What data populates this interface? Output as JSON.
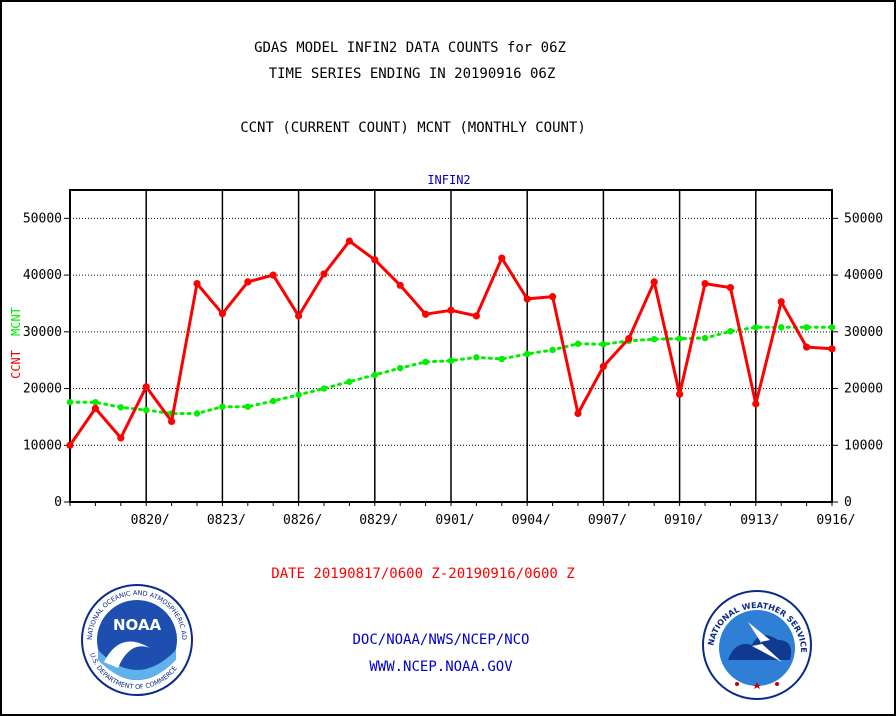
{
  "colors": {
    "ccnt": "#ff0000",
    "mcnt": "#00ee00",
    "frame": "#000000",
    "link_text": "#0000cc"
  },
  "header": {
    "title_line1": "GDAS MODEL INFIN2 DATA COUNTS for 06Z",
    "title_line2": "TIME SERIES ENDING IN 20190916 06Z",
    "legend_line": "CCNT (CURRENT COUNT) MCNT (MONTHLY COUNT)"
  },
  "chart_data": {
    "type": "line",
    "title": "INFIN2",
    "ylabel_series_1": "CCNT",
    "ylabel_series_2": "MCNT",
    "xlabel": "DATE 20190817/0600 Z-20190916/0600 Z",
    "ylim": [
      0,
      55000
    ],
    "y_ticks": [
      0,
      10000,
      20000,
      30000,
      40000,
      50000
    ],
    "x_tick_labels": [
      "0820/",
      "0823/",
      "0826/",
      "0829/",
      "0901/",
      "0904/",
      "0907/",
      "0910/",
      "0913/",
      "0916/"
    ],
    "x_tick_days": [
      3,
      6,
      9,
      12,
      15,
      18,
      21,
      24,
      27,
      30
    ],
    "x_range": [
      0,
      30
    ],
    "grid": true,
    "series": [
      {
        "name": "CCNT",
        "color": "#ff0000",
        "x": [
          0,
          1,
          2,
          3,
          4,
          5,
          6,
          7,
          8,
          9,
          10,
          11,
          12,
          13,
          14,
          15,
          16,
          17,
          18,
          19,
          20,
          21,
          22,
          23,
          24,
          25,
          26,
          27,
          28,
          29,
          30
        ],
        "values": [
          10000,
          16500,
          11300,
          20300,
          14200,
          38500,
          33200,
          38800,
          40000,
          32800,
          40200,
          46000,
          42700,
          38200,
          33100,
          33800,
          32800,
          43000,
          35800,
          36200,
          15600,
          23900,
          28800,
          38800,
          19000,
          38500,
          37800,
          17300,
          35300,
          27300,
          27000
        ]
      },
      {
        "name": "MCNT",
        "color": "#00ee00",
        "x": [
          0,
          1,
          2,
          3,
          4,
          5,
          6,
          7,
          8,
          9,
          10,
          11,
          12,
          13,
          14,
          15,
          16,
          17,
          18,
          19,
          20,
          21,
          22,
          23,
          24,
          25,
          26,
          27,
          28,
          29,
          30
        ],
        "values": [
          17600,
          17600,
          16700,
          16200,
          15600,
          15600,
          16800,
          16800,
          17800,
          18900,
          20000,
          21200,
          22400,
          23600,
          24700,
          24900,
          25500,
          25200,
          26100,
          26800,
          27900,
          27800,
          28400,
          28700,
          28800,
          28900,
          30100,
          30800,
          30800,
          30800,
          30800
        ]
      }
    ]
  },
  "footer": {
    "credit_line": "DOC/NOAA/NWS/NCEP/NCO",
    "url_line": "WWW.NCEP.NOAA.GOV",
    "noaa_logo_text": "NOAA",
    "noaa_ring_text": "NATIONAL OCEANIC AND ATMOSPHERIC ADMINISTRATION",
    "noaa_ring_bottom": "U.S. DEPARTMENT OF COMMERCE",
    "nws_ring_text": "NATIONAL WEATHER SERVICE"
  }
}
